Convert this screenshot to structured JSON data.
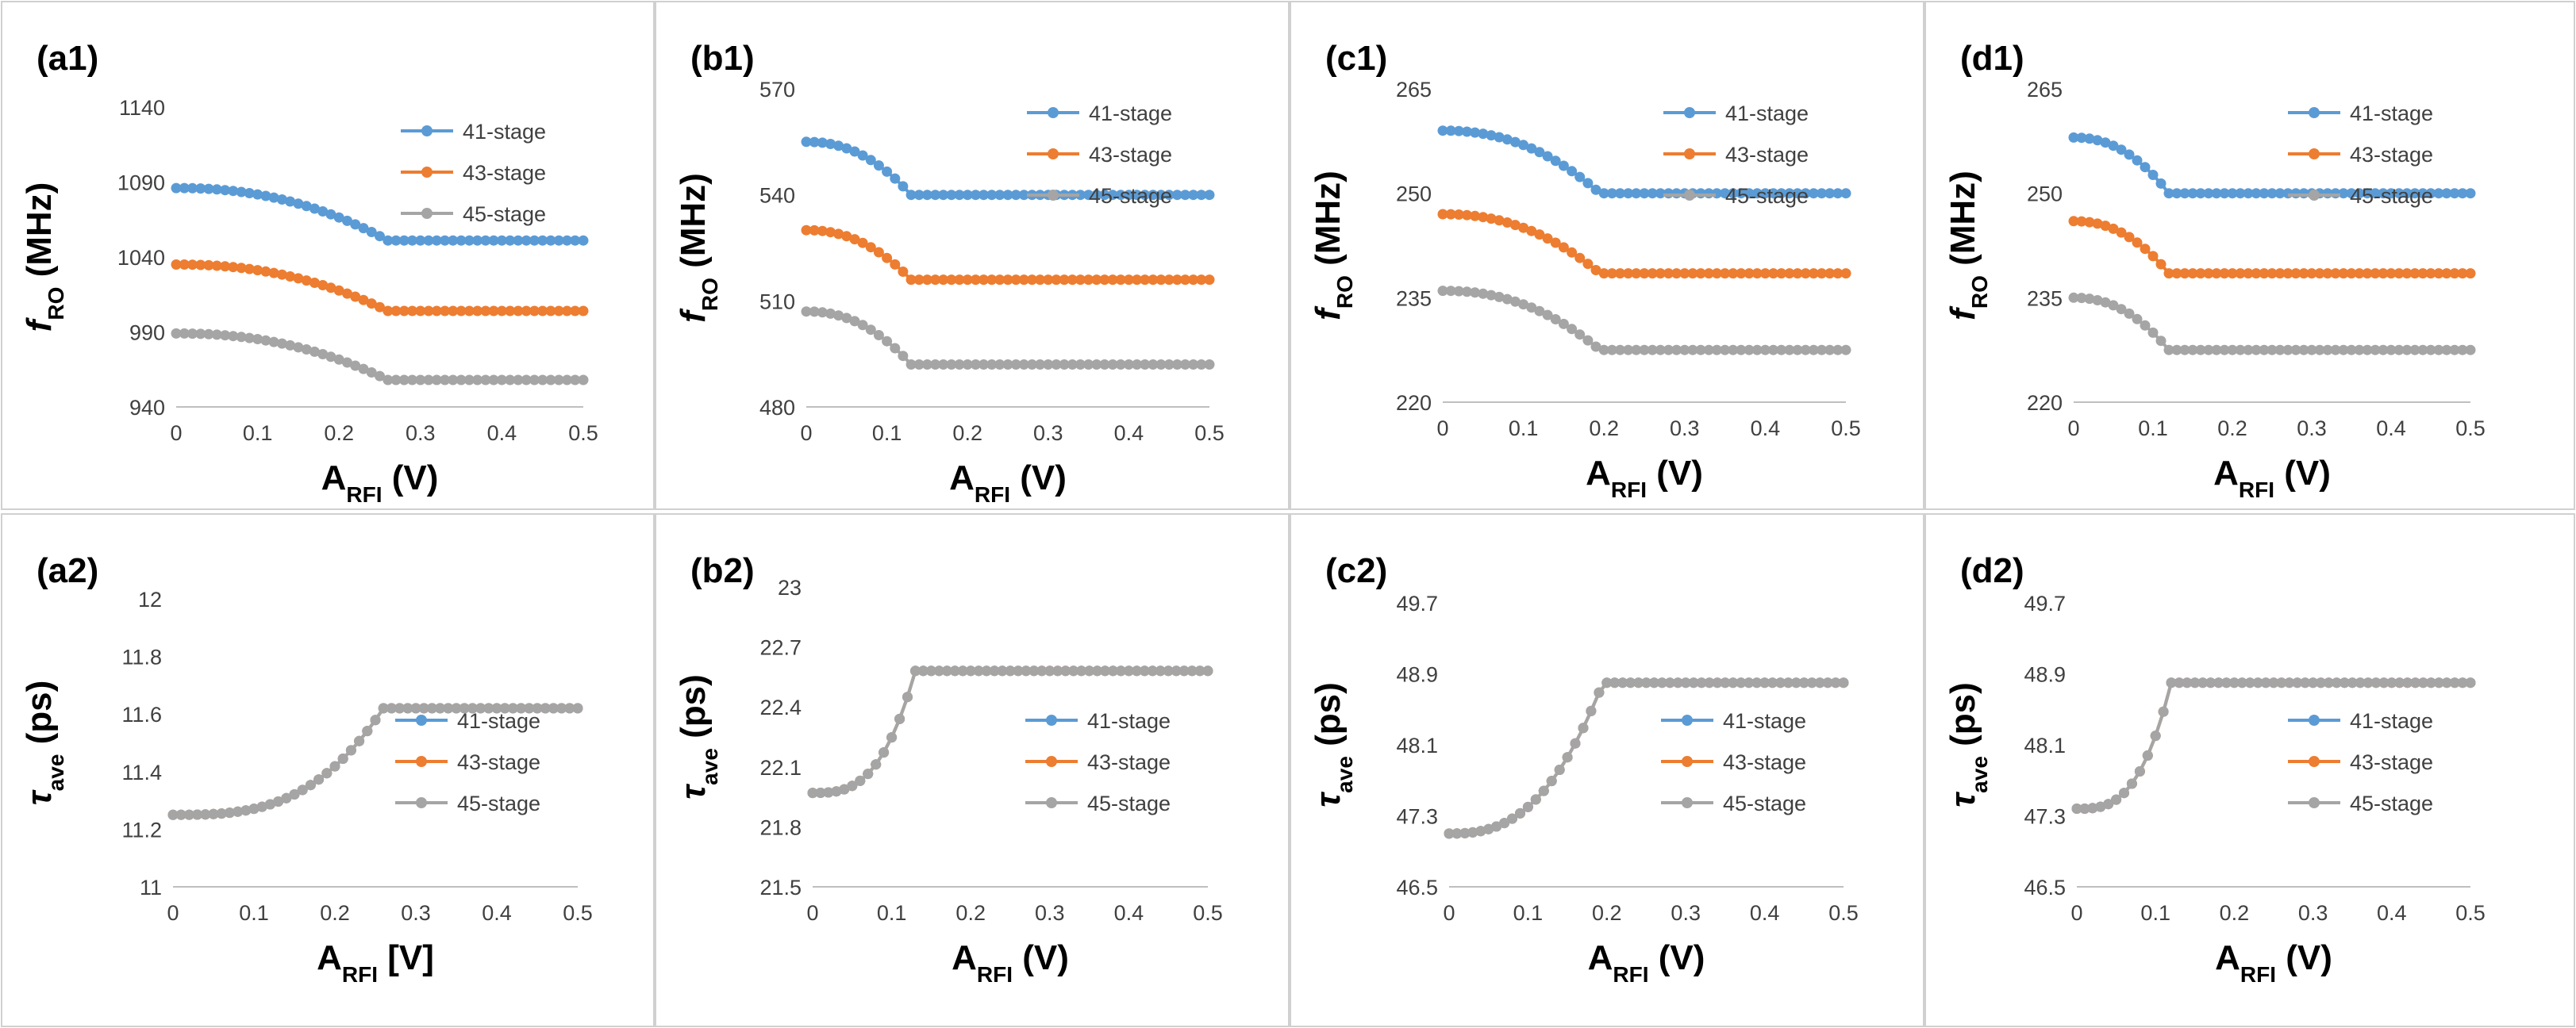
{
  "colors": {
    "s41": "#5b9bd5",
    "s43": "#ed7d31",
    "s45": "#a5a5a5"
  },
  "chart_data": [
    {
      "id": "a1",
      "type": "line",
      "label": "(a1)",
      "ylabel": {
        "main": "f",
        "sub": "RO",
        "unit": " (MHz)",
        "italic_main": true
      },
      "xlabel": {
        "main": "A",
        "sub": "RFI",
        "unit": " (V)"
      },
      "ylim": [
        940,
        1140
      ],
      "yticks": [
        940,
        990,
        1040,
        1090,
        1140
      ],
      "ytick_labels": [
        "940",
        "990",
        "1040",
        "1090",
        "1140"
      ],
      "xlim": [
        0,
        0.5
      ],
      "xticks": [
        0,
        0.1,
        0.2,
        0.3,
        0.4,
        0.5
      ],
      "xtick_labels": [
        "0",
        "0.1",
        "0.2",
        "0.3",
        "0.4",
        "0.5"
      ],
      "legend_position": "top-right",
      "knee": 0.26,
      "curvature": 2.2,
      "series": [
        {
          "name": "41-stage",
          "start": 1086,
          "end": 1051
        },
        {
          "name": "43-stage",
          "start": 1035,
          "end": 1004
        },
        {
          "name": "45-stage",
          "start": 989,
          "end": 958
        }
      ]
    },
    {
      "id": "b1",
      "type": "line",
      "label": "(b1)",
      "ylabel": {
        "main": "f",
        "sub": "RO",
        "unit": " (MHz)",
        "italic_main": true
      },
      "xlabel": {
        "main": "A",
        "sub": "RFI",
        "unit": " (V)"
      },
      "ylim": [
        480,
        570
      ],
      "yticks": [
        480,
        510,
        540,
        570
      ],
      "ytick_labels": [
        "480",
        "510",
        "540",
        "570"
      ],
      "xlim": [
        0,
        0.5
      ],
      "xticks": [
        0,
        0.1,
        0.2,
        0.3,
        0.4,
        0.5
      ],
      "xtick_labels": [
        "0",
        "0.1",
        "0.2",
        "0.3",
        "0.4",
        "0.5"
      ],
      "legend_position": "top-right",
      "knee": 0.13,
      "curvature": 2.2,
      "series": [
        {
          "name": "41-stage",
          "start": 555,
          "end": 540
        },
        {
          "name": "43-stage",
          "start": 530,
          "end": 516
        },
        {
          "name": "45-stage",
          "start": 507,
          "end": 492
        }
      ]
    },
    {
      "id": "c1",
      "type": "line",
      "label": "(c1)",
      "ylabel": {
        "main": "f",
        "sub": "RO",
        "unit": " (MHz)",
        "italic_main": true
      },
      "xlabel": {
        "main": "A",
        "sub": "RFI",
        "unit": " (V)"
      },
      "ylim": [
        220,
        265
      ],
      "yticks": [
        220,
        235,
        250,
        265
      ],
      "ytick_labels": [
        "220",
        "235",
        "250",
        "265"
      ],
      "xlim": [
        0,
        0.5
      ],
      "xticks": [
        0,
        0.1,
        0.2,
        0.3,
        0.4,
        0.5
      ],
      "xtick_labels": [
        "0",
        "0.1",
        "0.2",
        "0.3",
        "0.4",
        "0.5"
      ],
      "legend_position": "top-right",
      "knee": 0.195,
      "curvature": 2.2,
      "series": [
        {
          "name": "41-stage",
          "start": 259,
          "end": 250
        },
        {
          "name": "43-stage",
          "start": 247,
          "end": 238.5
        },
        {
          "name": "45-stage",
          "start": 236,
          "end": 227.5
        }
      ]
    },
    {
      "id": "d1",
      "type": "line",
      "label": "(d1)",
      "ylabel": {
        "main": "f",
        "sub": "RO",
        "unit": " (MHz)",
        "italic_main": true
      },
      "xlabel": {
        "main": "A",
        "sub": "RFI",
        "unit": " (V)"
      },
      "ylim": [
        220,
        265
      ],
      "yticks": [
        220,
        235,
        250,
        265
      ],
      "ytick_labels": [
        "220",
        "235",
        "250",
        "265"
      ],
      "xlim": [
        0,
        0.5
      ],
      "xticks": [
        0,
        0.1,
        0.2,
        0.3,
        0.4,
        0.5
      ],
      "xtick_labels": [
        "0",
        "0.1",
        "0.2",
        "0.3",
        "0.4",
        "0.5"
      ],
      "legend_position": "top-right",
      "knee": 0.12,
      "curvature": 2.2,
      "series": [
        {
          "name": "41-stage",
          "start": 258,
          "end": 250
        },
        {
          "name": "43-stage",
          "start": 246,
          "end": 238.5
        },
        {
          "name": "45-stage",
          "start": 235,
          "end": 227.5
        }
      ]
    },
    {
      "id": "a2",
      "type": "line",
      "label": "(a2)",
      "ylabel": {
        "main": "τ",
        "sub": "ave",
        "unit": " (ps)",
        "italic_main": true
      },
      "xlabel": {
        "main": "A",
        "sub": "RFI",
        "unit": " [V]"
      },
      "ylim": [
        11,
        12
      ],
      "yticks": [
        11,
        11.2,
        11.4,
        11.6,
        11.8,
        12
      ],
      "ytick_labels": [
        "11",
        "11.2",
        "11.4",
        "11.6",
        "11.8",
        "12"
      ],
      "xlim": [
        0,
        0.5
      ],
      "xticks": [
        0,
        0.1,
        0.2,
        0.3,
        0.4,
        0.5
      ],
      "xtick_labels": [
        "0",
        "0.1",
        "0.2",
        "0.3",
        "0.4",
        "0.5"
      ],
      "legend_position": "bottom-right",
      "knee": 0.26,
      "curvature": 3.0,
      "series": [
        {
          "name": "41-stage",
          "start": 11.25,
          "end": 11.62
        },
        {
          "name": "43-stage",
          "start": 11.25,
          "end": 11.62
        },
        {
          "name": "45-stage",
          "start": 11.25,
          "end": 11.62
        }
      ]
    },
    {
      "id": "b2",
      "type": "line",
      "label": "(b2)",
      "ylabel": {
        "main": "τ",
        "sub": "ave",
        "unit": " (ps)",
        "italic_main": true
      },
      "xlabel": {
        "main": "A",
        "sub": "RFI",
        "unit": " (V)"
      },
      "ylim": [
        21.5,
        23
      ],
      "yticks": [
        21.5,
        21.8,
        22.1,
        22.4,
        22.7,
        23
      ],
      "ytick_labels": [
        "21.5",
        "21.8",
        "22.1",
        "22.4",
        "22.7",
        "23"
      ],
      "xlim": [
        0,
        0.5
      ],
      "xticks": [
        0,
        0.1,
        0.2,
        0.3,
        0.4,
        0.5
      ],
      "xtick_labels": [
        "0",
        "0.1",
        "0.2",
        "0.3",
        "0.4",
        "0.5"
      ],
      "legend_position": "bottom-right",
      "knee": 0.13,
      "curvature": 3.0,
      "series": [
        {
          "name": "41-stage",
          "start": 21.97,
          "end": 22.58
        },
        {
          "name": "43-stage",
          "start": 21.97,
          "end": 22.58
        },
        {
          "name": "45-stage",
          "start": 21.97,
          "end": 22.58
        }
      ]
    },
    {
      "id": "c2",
      "type": "line",
      "label": "(c2)",
      "ylabel": {
        "main": "τ",
        "sub": "ave",
        "unit": " (ps)",
        "italic_main": true
      },
      "xlabel": {
        "main": "A",
        "sub": "RFI",
        "unit": " (V)"
      },
      "ylim": [
        46.5,
        49.7
      ],
      "yticks": [
        46.5,
        47.3,
        48.1,
        48.9,
        49.7
      ],
      "ytick_labels": [
        "46.5",
        "47.3",
        "48.1",
        "48.9",
        "49.7"
      ],
      "xlim": [
        0,
        0.5
      ],
      "xticks": [
        0,
        0.1,
        0.2,
        0.3,
        0.4,
        0.5
      ],
      "xtick_labels": [
        "0",
        "0.1",
        "0.2",
        "0.3",
        "0.4",
        "0.5"
      ],
      "legend_position": "bottom-right",
      "knee": 0.195,
      "curvature": 2.6,
      "series": [
        {
          "name": "41-stage",
          "start": 47.1,
          "end": 48.8
        },
        {
          "name": "43-stage",
          "start": 47.1,
          "end": 48.8
        },
        {
          "name": "45-stage",
          "start": 47.1,
          "end": 48.8
        }
      ]
    },
    {
      "id": "d2",
      "type": "line",
      "label": "(d2)",
      "ylabel": {
        "main": "τ",
        "sub": "ave",
        "unit": " (ps)",
        "italic_main": true
      },
      "xlabel": {
        "main": "A",
        "sub": "RFI",
        "unit": " (V)"
      },
      "ylim": [
        46.5,
        49.7
      ],
      "yticks": [
        46.5,
        47.3,
        48.1,
        48.9,
        49.7
      ],
      "ytick_labels": [
        "46.5",
        "47.3",
        "48.1",
        "48.9",
        "49.7"
      ],
      "xlim": [
        0,
        0.5
      ],
      "xticks": [
        0,
        0.1,
        0.2,
        0.3,
        0.4,
        0.5
      ],
      "xtick_labels": [
        "0",
        "0.1",
        "0.2",
        "0.3",
        "0.4",
        "0.5"
      ],
      "legend_position": "bottom-right",
      "knee": 0.12,
      "curvature": 3.0,
      "series": [
        {
          "name": "41-stage",
          "start": 47.38,
          "end": 48.8
        },
        {
          "name": "43-stage",
          "start": 47.38,
          "end": 48.8
        },
        {
          "name": "45-stage",
          "start": 47.38,
          "end": 48.8
        }
      ]
    }
  ]
}
